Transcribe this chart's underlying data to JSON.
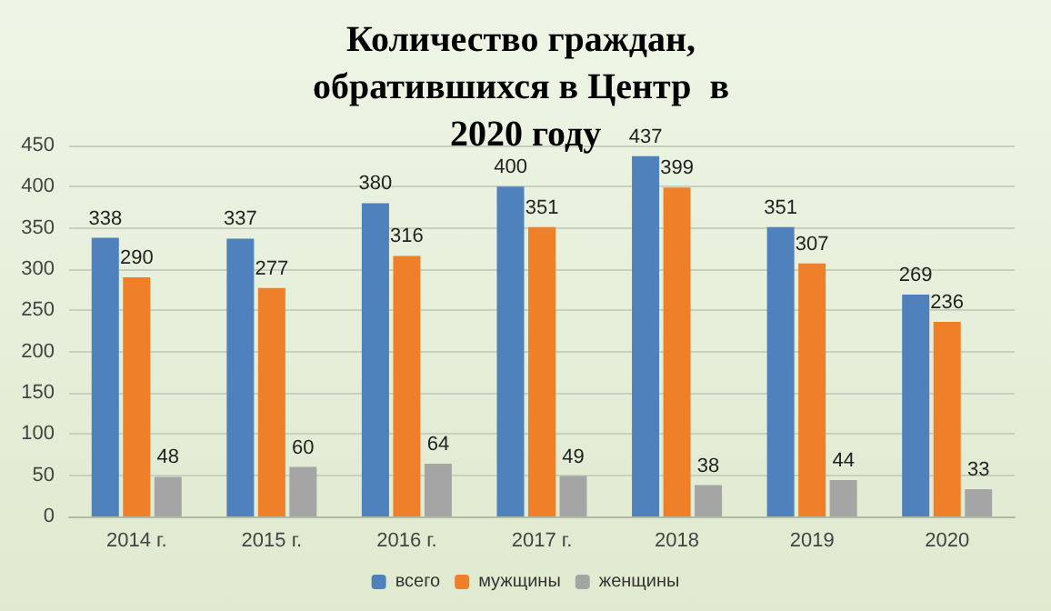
{
  "chart_data": {
    "type": "bar",
    "title": "Количество граждан, обратившихся в Центр  в 2020 году",
    "categories": [
      "2014 г.",
      "2015 г.",
      "2016 г.",
      "2017 г.",
      "2018",
      "2019",
      "2020"
    ],
    "series": [
      {
        "name": "всего",
        "color": "#4f81bd",
        "values": [
          338,
          337,
          380,
          400,
          437,
          351,
          269
        ]
      },
      {
        "name": "мужщины",
        "color": "#f07f2a",
        "values": [
          290,
          277,
          316,
          351,
          399,
          307,
          236
        ]
      },
      {
        "name": "женщины",
        "color": "#a5a5a5",
        "values": [
          48,
          60,
          64,
          49,
          38,
          44,
          33
        ]
      }
    ],
    "ylim": [
      0,
      450
    ],
    "yticks": [
      0,
      50,
      100,
      150,
      200,
      250,
      300,
      350,
      400,
      450
    ],
    "grid": "y",
    "legend": "bottom",
    "data_labels": true
  }
}
